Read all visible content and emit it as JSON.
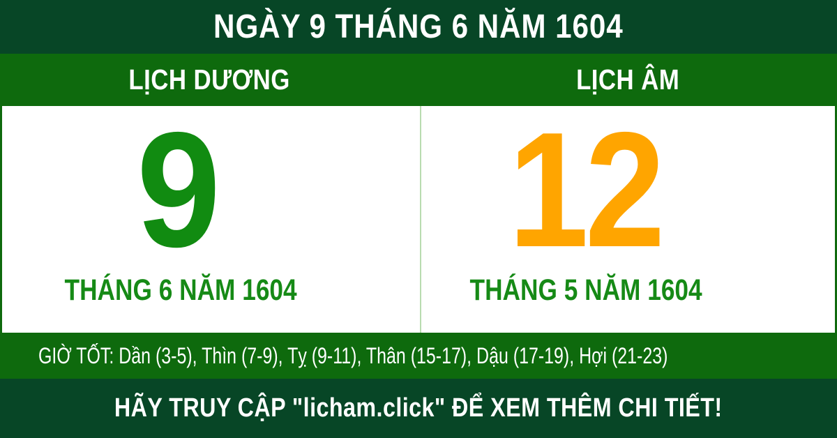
{
  "colors": {
    "dark_green": "#074626",
    "bright_green": "#0e6a0d",
    "day_green": "#118b11",
    "month_green": "#168a16",
    "lunar_orange": "#ffa500",
    "panel_white": "#ffffff",
    "divider_green": "#b9dcb0",
    "text_white": "#ffffff"
  },
  "header": {
    "title": "NGÀY 9 THÁNG 6 NĂM 1604"
  },
  "calendar_labels": {
    "solar": "LỊCH DƯƠNG",
    "lunar": "LỊCH ÂM"
  },
  "solar": {
    "day": "9",
    "month_year": "THÁNG 6 NĂM 1604"
  },
  "lunar": {
    "day": "12",
    "month_year": "THÁNG 5 NĂM 1604"
  },
  "good_hours": {
    "text": "GIỜ TỐT: Dần (3-5), Thìn (7-9), Tỵ (9-11), Thân (15-17), Dậu (17-19), Hợi (21-23)"
  },
  "footer": {
    "cta": "HÃY TRUY CẬP \"licham.click\" ĐỂ XEM THÊM CHI TIẾT!"
  }
}
